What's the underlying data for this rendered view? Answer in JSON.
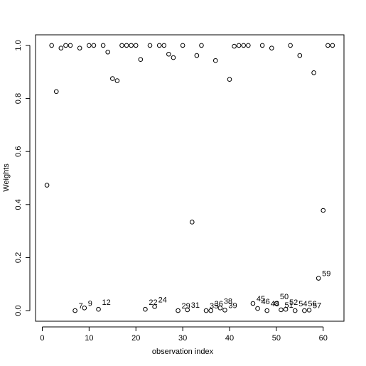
{
  "chart_data": {
    "type": "scatter",
    "x_label": "observation index",
    "y_label": "Weights",
    "x": [
      1,
      2,
      3,
      4,
      5,
      6,
      7,
      8,
      9,
      10,
      11,
      12,
      13,
      14,
      15,
      16,
      17,
      18,
      19,
      20,
      21,
      22,
      23,
      24,
      25,
      26,
      27,
      28,
      29,
      30,
      31,
      32,
      33,
      34,
      35,
      36,
      37,
      38,
      39,
      40,
      41,
      42,
      43,
      44,
      45,
      46,
      47,
      48,
      49,
      50,
      51,
      52,
      53,
      54,
      55,
      56,
      57,
      58,
      59,
      60,
      61,
      62
    ],
    "values": [
      0.473,
      1.0,
      0.826,
      0.99,
      1.0,
      1.0,
      0.0,
      0.99,
      0.01,
      1.0,
      1.0,
      0.005,
      1.0,
      0.975,
      0.875,
      0.867,
      1.0,
      1.0,
      1.0,
      1.0,
      0.947,
      0.005,
      1.0,
      0.015,
      1.0,
      1.0,
      0.967,
      0.954,
      0.0,
      1.0,
      0.003,
      0.334,
      0.962,
      1.0,
      0.0,
      0.0,
      0.943,
      0.01,
      0.002,
      0.872,
      0.997,
      1.0,
      1.0,
      1.0,
      0.027,
      0.008,
      1.0,
      0.0,
      0.99,
      0.027,
      0.003,
      0.005,
      1.0,
      0.0,
      0.962,
      0.0,
      0.002,
      0.897,
      0.122,
      0.378,
      1.0,
      1.0
    ],
    "point_labels": [
      null,
      null,
      null,
      null,
      null,
      null,
      "7",
      null,
      "9",
      null,
      null,
      "12",
      null,
      null,
      null,
      null,
      null,
      null,
      null,
      null,
      null,
      "22",
      null,
      "24",
      null,
      null,
      null,
      null,
      "29",
      null,
      "31",
      null,
      null,
      null,
      "35",
      "36",
      null,
      "38",
      "39",
      null,
      null,
      null,
      null,
      null,
      "45",
      "46",
      null,
      "48",
      null,
      "50",
      "51",
      "52",
      null,
      "54",
      null,
      "56",
      "57",
      null,
      "59",
      null,
      null,
      null
    ],
    "color": "#000000",
    "xlim": [
      -1.44,
      64.44
    ],
    "xticks": [
      0,
      10,
      20,
      30,
      40,
      50,
      60
    ],
    "ylim": [
      -0.04,
      1.04
    ],
    "yticks": [
      {
        "value": 0,
        "label": "0.0"
      },
      {
        "value": 0.2,
        "label": "0.2"
      },
      {
        "value": 0.4,
        "label": "0.4"
      },
      {
        "value": 0.6,
        "label": "0.6"
      },
      {
        "value": 0.8,
        "label": "0.8"
      },
      {
        "value": 1,
        "label": "1.0"
      }
    ]
  }
}
